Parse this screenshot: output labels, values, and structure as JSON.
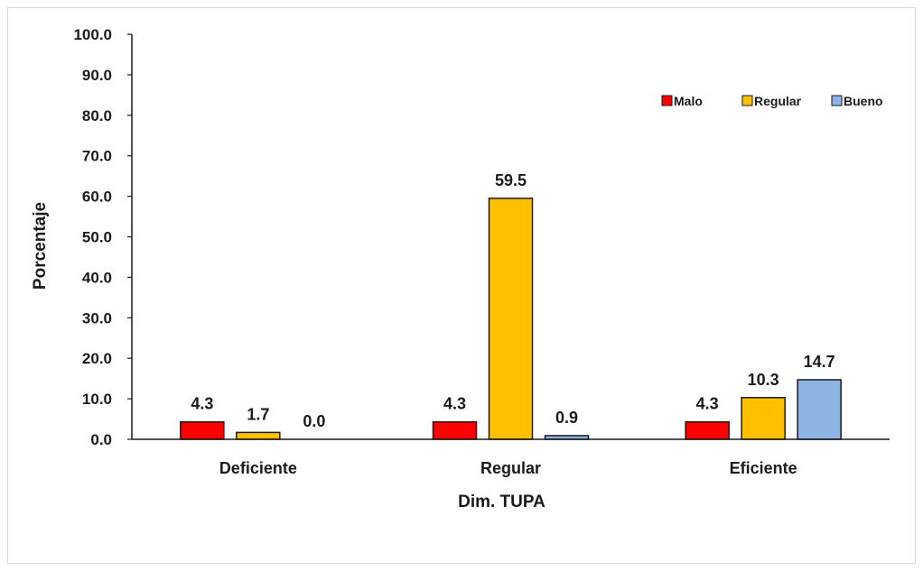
{
  "chart_data": {
    "type": "bar",
    "title": "",
    "xlabel": "Dim. TUPA",
    "ylabel": "Porcentaje",
    "ylim": [
      0,
      100
    ],
    "yticks": [
      "0.0",
      "10.0",
      "20.0",
      "30.0",
      "40.0",
      "50.0",
      "60.0",
      "70.0",
      "80.0",
      "90.0",
      "100.0"
    ],
    "categories": [
      "Deficiente",
      "Regular",
      "Eficiente"
    ],
    "series": [
      {
        "name": "Malo",
        "color": "#ff0000",
        "values": [
          4.3,
          4.3,
          4.3
        ]
      },
      {
        "name": "Regular",
        "color": "#ffc000",
        "values": [
          1.7,
          59.5,
          10.3
        ]
      },
      {
        "name": "Bueno",
        "color": "#8eb4e3",
        "values": [
          0.0,
          0.9,
          14.7
        ]
      }
    ],
    "legend_position": "top-right",
    "grid": false
  }
}
